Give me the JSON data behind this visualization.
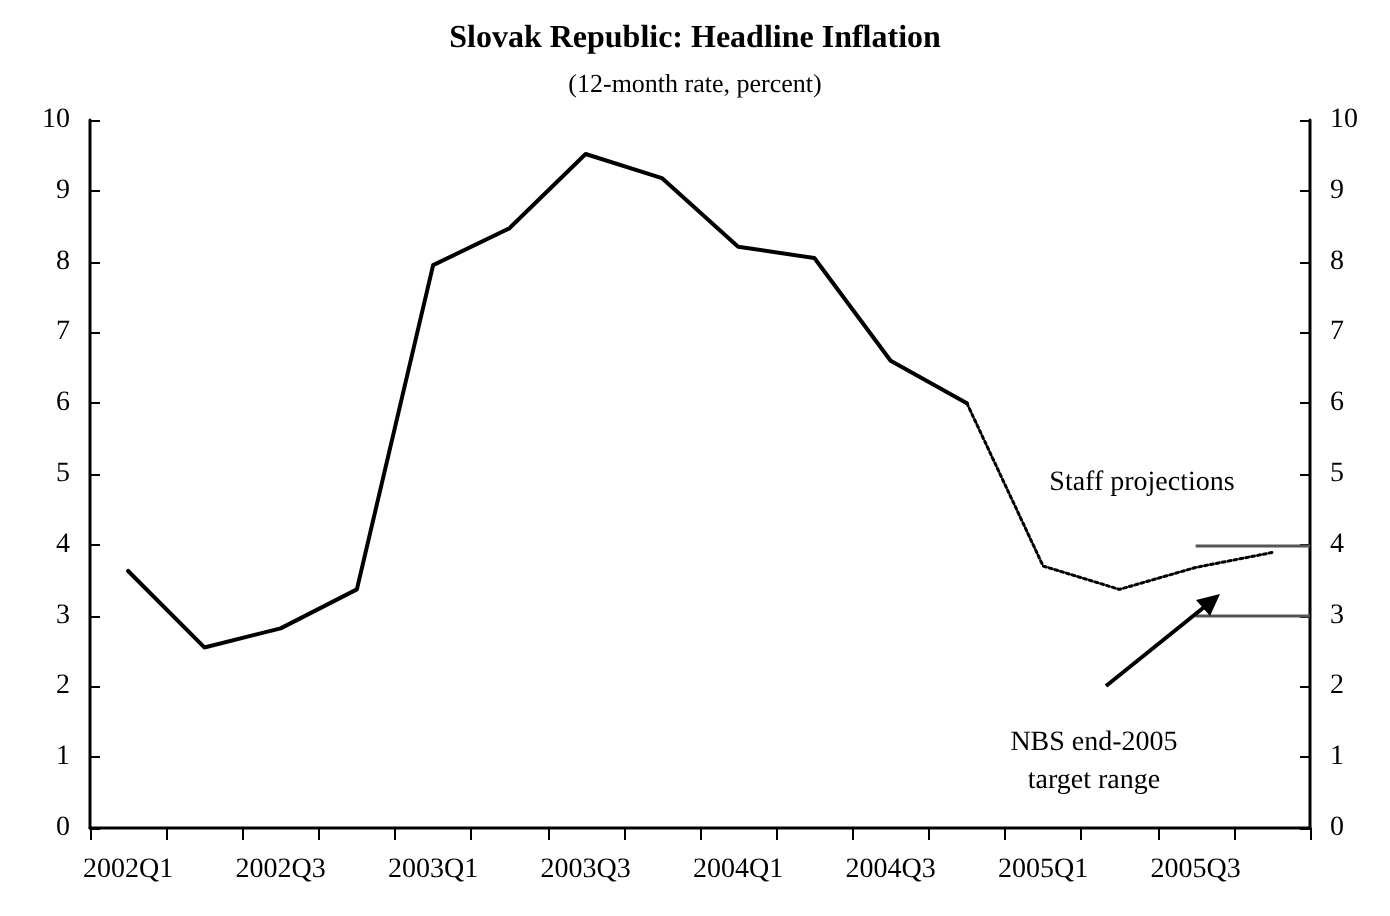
{
  "chart_data": {
    "type": "line",
    "title": "Slovak Republic: Headline Inflation",
    "subtitle": "(12-month rate, percent)",
    "categories": [
      "2002Q1",
      null,
      "2002Q3",
      null,
      "2003Q1",
      null,
      "2003Q3",
      null,
      "2004Q1",
      null,
      "2004Q3",
      null,
      "2005Q1",
      null,
      "2005Q3",
      null
    ],
    "series": [
      {
        "color": "#000000",
        "line_style": "solid",
        "values": [
          3.63,
          2.55,
          2.82,
          3.37,
          7.95,
          8.47,
          9.52,
          9.18,
          8.21,
          8.05,
          6.6,
          6.0,
          null,
          null,
          null,
          null
        ]
      },
      {
        "color": "#000000",
        "line_style": "dotted",
        "values": [
          null,
          null,
          null,
          null,
          null,
          null,
          null,
          null,
          null,
          null,
          null,
          6.0,
          3.7,
          3.37,
          3.68,
          3.89
        ]
      }
    ],
    "ylim": [
      0,
      10
    ],
    "yticks": [
      0,
      1,
      2,
      3,
      4,
      5,
      6,
      7,
      8,
      9,
      10
    ],
    "y2lim": [
      0,
      10
    ],
    "y2ticks": [
      0,
      1,
      2,
      3,
      4,
      5,
      6,
      7,
      8,
      9,
      10
    ],
    "ref_lines": [
      {
        "axis": "y",
        "value": 4,
        "color": "#555555"
      },
      {
        "axis": "y",
        "value": 3,
        "color": "#555555"
      }
    ],
    "annotations": [
      "Staff projections",
      "NBS end-2005\ntarget range"
    ],
    "grid": false,
    "marker": "none"
  }
}
